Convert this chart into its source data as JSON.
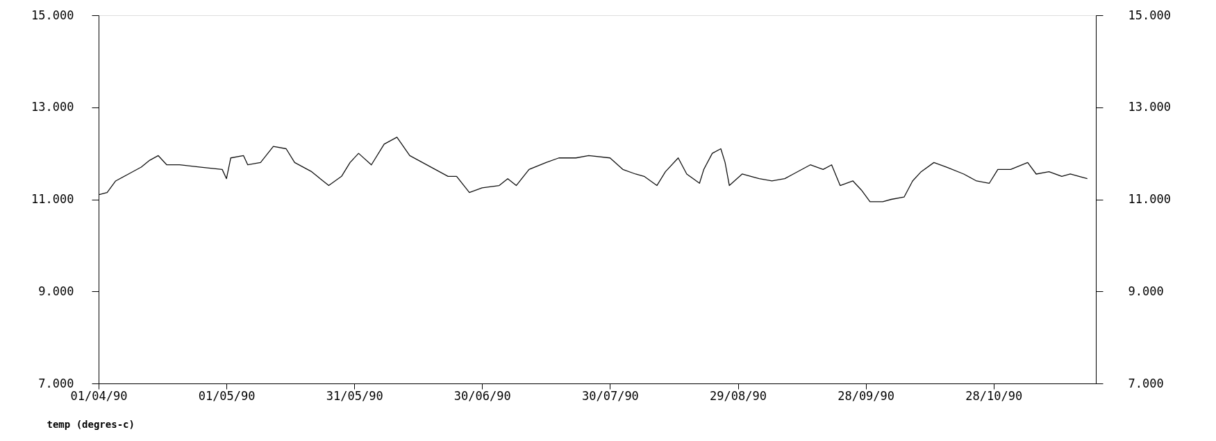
{
  "chart_data": {
    "type": "line",
    "ylabel": "temp (degres-c)",
    "grid": false,
    "line_style": "solid",
    "xlim": [
      "1990-04-01",
      "1990-11-21"
    ],
    "xticks": [
      {
        "value": "1990-04-01",
        "label": "01/04/90"
      },
      {
        "value": "1990-05-01",
        "label": "01/05/90"
      },
      {
        "value": "1990-05-31",
        "label": "31/05/90"
      },
      {
        "value": "1990-06-30",
        "label": "30/06/90"
      },
      {
        "value": "1990-07-30",
        "label": "30/07/90"
      },
      {
        "value": "1990-08-29",
        "label": "29/08/90"
      },
      {
        "value": "1990-09-28",
        "label": "28/09/90"
      },
      {
        "value": "1990-10-28",
        "label": "28/10/90"
      }
    ],
    "ylim": [
      7,
      15
    ],
    "yticks": [
      {
        "value": 7,
        "label": "7.000"
      },
      {
        "value": 9,
        "label": "9.000"
      },
      {
        "value": 11,
        "label": "11.000"
      },
      {
        "value": 13,
        "label": "13.000"
      },
      {
        "value": 15,
        "label": "15.000"
      }
    ],
    "y2lim": [
      7,
      15
    ],
    "y2ticks": [
      {
        "value": 7,
        "label": "7.000"
      },
      {
        "value": 9,
        "label": "9.000"
      },
      {
        "value": 11,
        "label": "11.000"
      },
      {
        "value": 13,
        "label": "13.000"
      },
      {
        "value": 15,
        "label": "15.000"
      }
    ],
    "x": [
      "1990-04-01",
      "1990-04-03",
      "1990-04-05",
      "1990-04-08",
      "1990-04-11",
      "1990-04-13",
      "1990-04-15",
      "1990-04-17",
      "1990-04-20",
      "1990-04-25",
      "1990-04-30",
      "1990-05-01",
      "1990-05-02",
      "1990-05-05",
      "1990-05-06",
      "1990-05-09",
      "1990-05-12",
      "1990-05-15",
      "1990-05-17",
      "1990-05-21",
      "1990-05-23",
      "1990-05-25",
      "1990-05-28",
      "1990-05-30",
      "1990-06-01",
      "1990-06-04",
      "1990-06-07",
      "1990-06-10",
      "1990-06-13",
      "1990-06-16",
      "1990-06-19",
      "1990-06-22",
      "1990-06-24",
      "1990-06-27",
      "1990-06-30",
      "1990-07-04",
      "1990-07-06",
      "1990-07-08",
      "1990-07-11",
      "1990-07-15",
      "1990-07-18",
      "1990-07-22",
      "1990-07-25",
      "1990-07-30",
      "1990-08-02",
      "1990-08-05",
      "1990-08-07",
      "1990-08-10",
      "1990-08-12",
      "1990-08-15",
      "1990-08-17",
      "1990-08-20",
      "1990-08-21",
      "1990-08-23",
      "1990-08-25",
      "1990-08-26",
      "1990-08-27",
      "1990-08-30",
      "1990-09-03",
      "1990-09-06",
      "1990-09-09",
      "1990-09-11",
      "1990-09-15",
      "1990-09-18",
      "1990-09-20",
      "1990-09-22",
      "1990-09-25",
      "1990-09-27",
      "1990-09-29",
      "1990-10-02",
      "1990-10-04",
      "1990-10-07",
      "1990-10-09",
      "1990-10-11",
      "1990-10-14",
      "1990-10-17",
      "1990-10-21",
      "1990-10-24",
      "1990-10-27",
      "1990-10-29",
      "1990-11-01",
      "1990-11-05",
      "1990-11-07",
      "1990-11-10",
      "1990-11-13",
      "1990-11-15",
      "1990-11-19"
    ],
    "series": [
      {
        "color": "#111111",
        "values": [
          11.1,
          11.15,
          11.4,
          11.55,
          11.7,
          11.85,
          11.95,
          11.75,
          11.75,
          11.7,
          11.65,
          11.45,
          11.9,
          11.95,
          11.75,
          11.8,
          12.15,
          12.1,
          11.8,
          11.6,
          11.45,
          11.3,
          11.5,
          11.8,
          12.0,
          11.75,
          12.2,
          12.35,
          11.95,
          11.8,
          11.65,
          11.5,
          11.5,
          11.15,
          11.25,
          11.3,
          11.45,
          11.3,
          11.65,
          11.8,
          11.9,
          11.9,
          11.95,
          11.9,
          11.65,
          11.55,
          11.5,
          11.3,
          11.6,
          11.9,
          11.55,
          11.35,
          11.65,
          12.0,
          12.1,
          11.8,
          11.3,
          11.55,
          11.45,
          11.4,
          11.45,
          11.55,
          11.75,
          11.65,
          11.75,
          11.3,
          11.4,
          11.2,
          10.95,
          10.95,
          11.0,
          11.05,
          11.4,
          11.6,
          11.8,
          11.7,
          11.55,
          11.4,
          11.35,
          11.65,
          11.65,
          11.8,
          11.55,
          11.6,
          11.5,
          11.55,
          11.45
        ]
      }
    ]
  }
}
